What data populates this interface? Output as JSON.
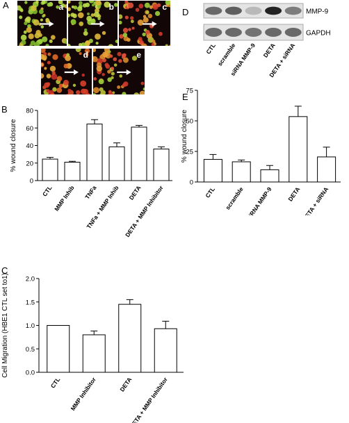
{
  "panel_letters": {
    "a": "A",
    "b": "B",
    "c": "C",
    "d": "D",
    "e": "E"
  },
  "micrographs": [
    {
      "tag": "a",
      "palette": "green"
    },
    {
      "tag": "b",
      "palette": "green"
    },
    {
      "tag": "c",
      "palette": "mixed"
    },
    {
      "tag": "d",
      "palette": "red"
    },
    {
      "tag": "e",
      "palette": "mixed"
    }
  ],
  "blot": {
    "bands": [
      "MMP-9",
      "GAPDH"
    ],
    "lanes": [
      "CTL",
      "scramble",
      "siRNA MMP-9",
      "DETA",
      "DETA + siRNA"
    ],
    "mmp9_intensity": [
      0.65,
      0.7,
      0.25,
      1.0,
      0.55
    ],
    "gapdh_intensity": [
      0.65,
      0.65,
      0.6,
      0.65,
      0.65
    ]
  },
  "chart_data": [
    {
      "panel": "B",
      "type": "bar",
      "categories": [
        "CTL",
        "MMP Inhib",
        "TNFa",
        "TNFa + MMP Inhib",
        "DETA",
        "DETA + MMP Inhibitor"
      ],
      "values": [
        24.5,
        21,
        64.5,
        38.5,
        61,
        36
      ],
      "errors": [
        2,
        1,
        5,
        4.5,
        2,
        2.5
      ],
      "ylabel": "% wound closure",
      "ylim": [
        0,
        80
      ],
      "yticks": [
        0,
        20,
        40,
        60,
        80
      ],
      "ytick_labels": [
        "0",
        "20",
        "40",
        "60",
        "80"
      ]
    },
    {
      "panel": "C",
      "type": "bar",
      "categories": [
        "CTL",
        "MMP Inhibitor",
        "DETA",
        "DETA + MMP Inhibitor"
      ],
      "values": [
        1.0,
        0.8,
        1.45,
        0.93
      ],
      "errors": [
        0,
        0.08,
        0.1,
        0.16
      ],
      "ylabel": "Cell Migration (HBE1 CTL set to1)",
      "ylim": [
        0,
        2
      ],
      "yticks": [
        0,
        0.5,
        1,
        1.5,
        2
      ],
      "ytick_labels": [
        "0.0",
        "0.5",
        "1.0",
        "1.5",
        "2.0"
      ]
    },
    {
      "panel": "E",
      "type": "bar",
      "categories": [
        "CTL",
        "scramble",
        "siRNA MMP-9",
        "DETA",
        "DETA + siRNA"
      ],
      "values": [
        18.5,
        16.5,
        10,
        53.5,
        20.5
      ],
      "errors": [
        4,
        1.5,
        3.5,
        8.5,
        8
      ],
      "ylabel": "% wound closure",
      "ylim": [
        0,
        75
      ],
      "yticks": [
        0,
        25,
        50,
        75
      ],
      "ytick_labels": [
        "0",
        "25",
        "50",
        "75"
      ]
    }
  ]
}
